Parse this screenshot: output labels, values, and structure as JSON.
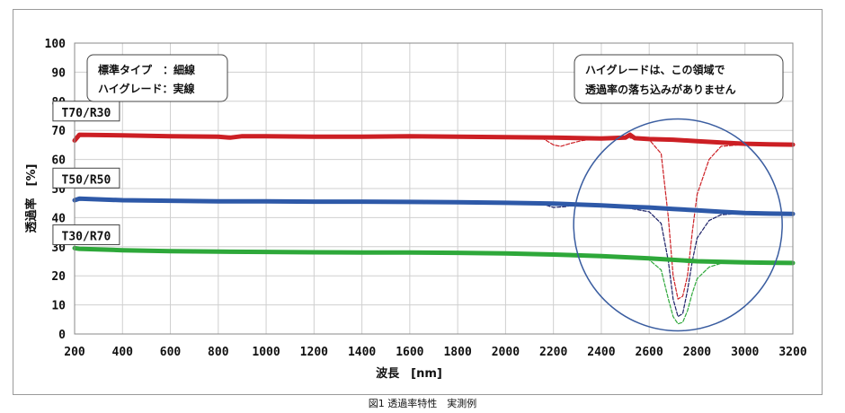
{
  "caption": "図1 透過率特性　実測例",
  "chart_data": {
    "type": "line",
    "title": "",
    "xlabel": "波長　[nm]",
    "ylabel": "透過率　[%]",
    "xlim": [
      200,
      3200
    ],
    "ylim": [
      0,
      100
    ],
    "xticks": [
      200,
      400,
      600,
      800,
      1000,
      1200,
      1400,
      1600,
      1800,
      2000,
      2200,
      2400,
      2600,
      2800,
      3000,
      3200
    ],
    "yticks": [
      0,
      10,
      20,
      30,
      40,
      50,
      60,
      70,
      80,
      90,
      100
    ],
    "grid": true,
    "legend_box": {
      "line1": "標準タイプ　：細線",
      "line2": "ハイグレード：実線"
    },
    "annotation_box": {
      "line1": "ハイグレードは、この領域で",
      "line2": "透過率の落ち込みがありません"
    },
    "colors": {
      "T70/R30": "#cc1f24",
      "T50/R50": "#2e59a8",
      "T30/R70": "#2ea83a",
      "circle": "#3a5da0",
      "grid": "#cfcfcf"
    },
    "series": [
      {
        "name": "T70/R30",
        "style": "solid",
        "color": "#cc1f24",
        "x": [
          200,
          220,
          400,
          600,
          800,
          850,
          900,
          1000,
          1200,
          1400,
          1600,
          1800,
          2000,
          2200,
          2400,
          2500,
          2520,
          2540,
          2600,
          2700,
          2800,
          2900,
          3000,
          3100,
          3200
        ],
        "y": [
          66.5,
          68.5,
          68.3,
          68.0,
          67.8,
          67.5,
          68.0,
          68.0,
          67.8,
          67.8,
          68.0,
          67.8,
          67.7,
          67.5,
          67.2,
          67.5,
          68.5,
          67.3,
          67.0,
          66.8,
          66.3,
          65.8,
          65.4,
          65.2,
          65.1
        ]
      },
      {
        "name": "T50/R50",
        "style": "solid",
        "color": "#2e59a8",
        "x": [
          200,
          220,
          400,
          600,
          800,
          1000,
          1200,
          1400,
          1600,
          1800,
          2000,
          2200,
          2400,
          2500,
          2600,
          2700,
          2800,
          2900,
          3000,
          3100,
          3200
        ],
        "y": [
          46.0,
          46.5,
          46.0,
          45.8,
          45.6,
          45.6,
          45.5,
          45.5,
          45.4,
          45.3,
          45.1,
          44.8,
          44.2,
          43.8,
          43.5,
          43.0,
          42.5,
          42.0,
          41.6,
          41.4,
          41.3
        ]
      },
      {
        "name": "T30/R70",
        "style": "solid",
        "color": "#2ea83a",
        "x": [
          200,
          220,
          400,
          600,
          800,
          1000,
          1200,
          1400,
          1600,
          1800,
          2000,
          2200,
          2400,
          2600,
          2700,
          2800,
          2900,
          3000,
          3100,
          3200
        ],
        "y": [
          29.5,
          29.3,
          28.8,
          28.5,
          28.3,
          28.2,
          28.1,
          28.0,
          28.0,
          27.9,
          27.7,
          27.3,
          26.8,
          26.0,
          25.5,
          25.0,
          24.8,
          24.6,
          24.5,
          24.4
        ]
      },
      {
        "name": "T70/R30 (standard)",
        "style": "dashed",
        "color": "#cc1f24",
        "x": [
          2150,
          2200,
          2230,
          2270,
          2320,
          2400,
          2500,
          2600,
          2650,
          2680,
          2700,
          2720,
          2740,
          2760,
          2780,
          2800,
          2850,
          2900,
          3000
        ],
        "y": [
          67.5,
          65.0,
          64.5,
          65.5,
          66.5,
          67.2,
          67.5,
          66.8,
          62.0,
          40.0,
          20.0,
          12.0,
          13.0,
          20.0,
          35.0,
          48.0,
          60.0,
          64.5,
          65.2
        ]
      },
      {
        "name": "T50/R50 (standard)",
        "style": "dashed",
        "color": "#1a1f66",
        "x": [
          2150,
          2200,
          2250,
          2300,
          2400,
          2500,
          2600,
          2650,
          2680,
          2700,
          2720,
          2740,
          2760,
          2780,
          2800,
          2850,
          2900,
          3000
        ],
        "y": [
          44.8,
          43.5,
          43.8,
          44.5,
          44.2,
          43.5,
          42.0,
          38.0,
          25.0,
          12.0,
          6.0,
          7.0,
          15.0,
          25.0,
          33.0,
          39.0,
          41.0,
          41.5
        ]
      },
      {
        "name": "T30/R70 (standard)",
        "style": "dashed",
        "color": "#2ea83a",
        "x": [
          2500,
          2600,
          2650,
          2680,
          2700,
          2720,
          2740,
          2760,
          2780,
          2800,
          2850,
          2900,
          3000
        ],
        "y": [
          26.5,
          25.5,
          22.0,
          12.0,
          6.0,
          3.5,
          4.0,
          8.0,
          14.0,
          19.0,
          23.0,
          24.3,
          24.5
        ]
      }
    ],
    "series_labels": [
      "T70/R30",
      "T50/R50",
      "T30/R70"
    ]
  }
}
